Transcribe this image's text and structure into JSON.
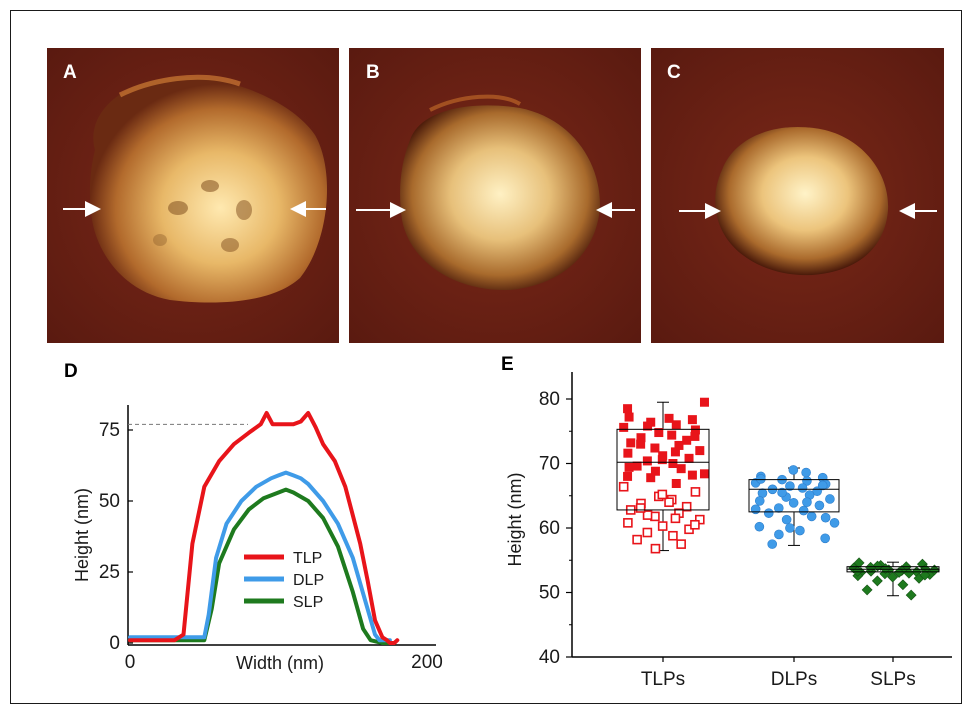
{
  "panels": {
    "a": {
      "letter": "A"
    },
    "b": {
      "letter": "B"
    },
    "c": {
      "letter": "C"
    },
    "d": {
      "letter": "D"
    },
    "e": {
      "letter": "E"
    }
  },
  "colors": {
    "tlp": "#e8141a",
    "dlp": "#3f9be8",
    "slp": "#1e7a1e",
    "background": "#6a1f14",
    "particle": "#f0cf86"
  },
  "chart_data": [
    {
      "type": "line",
      "panel": "D",
      "xlabel": "Width (nm)",
      "ylabel": "Height (nm)",
      "xlim": [
        0,
        200
      ],
      "ylim": [
        -2,
        85
      ],
      "xticks": [
        "0",
        "200"
      ],
      "yticks": [
        "0",
        "25",
        "50",
        "75"
      ],
      "reference_line": 77,
      "legend": "center",
      "series": [
        {
          "name": "TLP",
          "color": "#e8141a",
          "x": [
            0,
            10,
            20,
            30,
            36,
            42,
            50,
            60,
            70,
            80,
            88,
            92,
            96,
            100,
            105,
            110,
            115,
            120,
            125,
            130,
            138,
            145,
            150,
            155,
            160,
            165,
            170,
            173,
            175,
            178,
            180
          ],
          "y": [
            1,
            1,
            1,
            1,
            3,
            35,
            55,
            64,
            70,
            74,
            77,
            81,
            77,
            77,
            77,
            77,
            78,
            81,
            76,
            70,
            64,
            55,
            45,
            35,
            22,
            8,
            2,
            1,
            0,
            0,
            1
          ]
        },
        {
          "name": "DLP",
          "color": "#3f9be8",
          "x": [
            0,
            10,
            20,
            30,
            40,
            50,
            53,
            58,
            65,
            75,
            85,
            95,
            100,
            105,
            110,
            115,
            120,
            130,
            140,
            150,
            160,
            165,
            168,
            172,
            175
          ],
          "y": [
            2,
            2,
            2,
            2,
            2,
            2,
            10,
            30,
            42,
            50,
            55,
            58,
            59,
            60,
            59,
            58,
            56,
            50,
            42,
            30,
            12,
            3,
            1,
            1,
            1
          ]
        },
        {
          "name": "SLP",
          "color": "#1e7a1e",
          "x": [
            0,
            10,
            20,
            30,
            40,
            50,
            55,
            60,
            70,
            80,
            90,
            100,
            105,
            110,
            120,
            130,
            140,
            150,
            157,
            162,
            170,
            178
          ],
          "y": [
            1,
            1,
            1,
            1,
            1,
            1,
            12,
            28,
            40,
            47,
            51,
            53,
            54,
            53,
            50,
            44,
            34,
            18,
            5,
            1,
            0,
            0
          ]
        }
      ]
    },
    {
      "type": "scatter",
      "subtype": "box-and-scatter",
      "panel": "E",
      "ylabel": "Height (nm)",
      "ylim": [
        40,
        82
      ],
      "yticks": [
        "40",
        "50",
        "60",
        "70",
        "80"
      ],
      "categories": [
        "TLPs",
        "DLPs",
        "SLPs"
      ],
      "boxes": [
        {
          "name": "TLPs",
          "q1": 62.8,
          "median": 70.2,
          "q3": 75.3,
          "min": 56.5,
          "max": 79.5,
          "color": "#e8141a"
        },
        {
          "name": "DLPs",
          "q1": 62.5,
          "median": 66.0,
          "q3": 67.5,
          "min": 57.3,
          "max": 69.3,
          "color": "#3f9be8"
        },
        {
          "name": "SLPs",
          "q1": 53.2,
          "median": 53.6,
          "q3": 54.0,
          "min": 49.5,
          "max": 54.7,
          "color": "#1e7a1e"
        }
      ],
      "points": {
        "TLPs": [
          77.2,
          76.8,
          76.4,
          76.0,
          75.6,
          75.2,
          74.8,
          74.4,
          74.0,
          73.6,
          73.2,
          72.8,
          72.4,
          72.0,
          71.6,
          71.2,
          70.8,
          70.4,
          70.0,
          69.6,
          69.2,
          68.8,
          68.4,
          68.0,
          77.0,
          75.8,
          74.2,
          73.0,
          71.8,
          70.6,
          69.4,
          68.2,
          67.8,
          66.9,
          66.4,
          65.6,
          64.9,
          64.4,
          63.8,
          63.3,
          62.8,
          62.3,
          61.8,
          61.3,
          60.8,
          60.3,
          59.8,
          59.3,
          58.8,
          58.2,
          57.5,
          56.8,
          79.5,
          78.5,
          64.0,
          62.0,
          60.5,
          63.1,
          61.5,
          65.2
        ],
        "DLPs": [
          68.0,
          67.8,
          67.5,
          67.3,
          67.0,
          66.8,
          66.5,
          66.2,
          66.0,
          65.7,
          65.4,
          65.1,
          64.8,
          64.5,
          64.2,
          63.9,
          63.5,
          63.1,
          62.7,
          62.3,
          61.8,
          61.3,
          60.8,
          60.2,
          59.6,
          59.0,
          58.4,
          57.5,
          68.6,
          69.0,
          67.6,
          66.6,
          65.5,
          64.0,
          62.9,
          61.6,
          60.0
        ],
        "SLPs": [
          54.6,
          54.4,
          54.2,
          54.0,
          53.8,
          53.6,
          53.5,
          53.4,
          53.3,
          53.2,
          53.1,
          53.0,
          52.9,
          52.8,
          52.6,
          52.4,
          52.2,
          51.8,
          51.2,
          50.4,
          49.6,
          53.7,
          53.5,
          53.3,
          53.1,
          54.1,
          52.7,
          53.9
        ]
      }
    }
  ]
}
